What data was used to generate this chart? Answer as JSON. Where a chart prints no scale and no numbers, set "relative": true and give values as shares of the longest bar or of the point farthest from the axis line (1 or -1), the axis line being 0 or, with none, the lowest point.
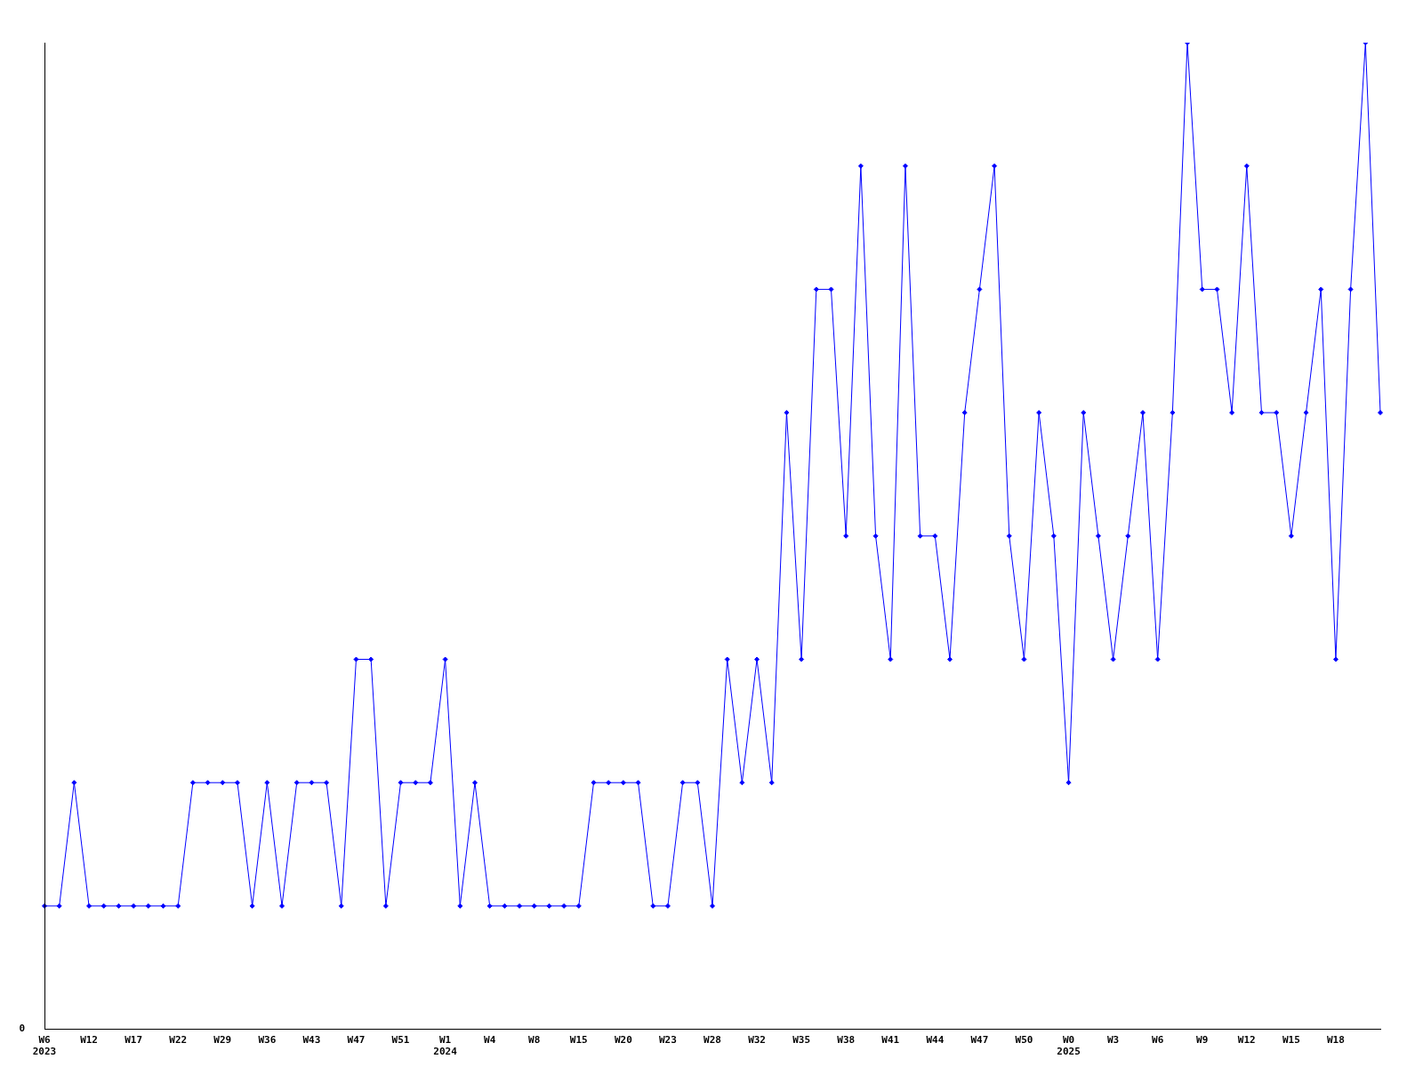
{
  "chart_data": {
    "type": "line",
    "relative": true,
    "color": "#0000ff",
    "marker": "diamond",
    "grid": false,
    "legend": false,
    "annotations": [
      "0"
    ],
    "categories": [
      "W6\n2023",
      null,
      null,
      "W12",
      null,
      null,
      "W17",
      null,
      null,
      "W22",
      null,
      null,
      "W29",
      null,
      null,
      "W36",
      null,
      null,
      "W43",
      null,
      null,
      "W47",
      null,
      null,
      "W51",
      null,
      null,
      "W1\n2024",
      null,
      null,
      "W4",
      null,
      null,
      "W8",
      null,
      null,
      "W15",
      null,
      null,
      "W20",
      null,
      null,
      "W23",
      null,
      null,
      "W28",
      null,
      null,
      "W32",
      null,
      null,
      "W35",
      null,
      null,
      "W38",
      null,
      null,
      "W41",
      null,
      null,
      "W44",
      null,
      null,
      "W47",
      null,
      null,
      "W50",
      null,
      null,
      "W0\n2025",
      null,
      null,
      "W3",
      null,
      null,
      "W6",
      null,
      null,
      "W9",
      null,
      null,
      "W12",
      null,
      null,
      "W15",
      null,
      null,
      "W18",
      null,
      null,
      null
    ],
    "values": [
      0.125,
      0.125,
      0.25,
      0.125,
      0.125,
      0.125,
      0.125,
      0.125,
      0.125,
      0.125,
      0.25,
      0.25,
      0.25,
      0.25,
      0.125,
      0.25,
      0.125,
      0.25,
      0.25,
      0.25,
      0.125,
      0.375,
      0.375,
      0.125,
      0.25,
      0.25,
      0.25,
      0.375,
      0.125,
      0.25,
      0.125,
      0.125,
      0.125,
      0.125,
      0.125,
      0.125,
      0.125,
      0.25,
      0.25,
      0.25,
      0.25,
      0.125,
      0.125,
      0.25,
      0.25,
      0.125,
      0.375,
      0.25,
      0.375,
      0.25,
      0.625,
      0.375,
      0.75,
      0.75,
      0.5,
      0.875,
      0.5,
      0.375,
      0.875,
      0.5,
      0.5,
      0.375,
      0.625,
      0.75,
      0.875,
      0.5,
      0.375,
      0.625,
      0.5,
      0.25,
      0.625,
      0.5,
      0.375,
      0.5,
      0.625,
      0.375,
      0.625,
      1,
      0.75,
      0.75,
      0.625,
      0.875,
      0.625,
      0.625,
      0.5,
      0.625,
      0.75,
      0.375,
      0.75,
      1,
      0.625
    ]
  }
}
